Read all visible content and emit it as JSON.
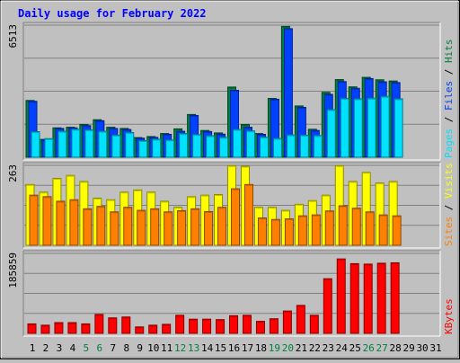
{
  "title": "Daily usage for February 2022",
  "colors": {
    "title": "#0000ff",
    "hits": "#008040",
    "files": "#0040ff",
    "pages": "#00e0ff",
    "visits": "#ffff00",
    "sites": "#ff8000",
    "kbytes": "#ff0000",
    "weekend": "#008040",
    "weekday": "#000000",
    "panel_bg": "#c0c0c0",
    "grid": "#808080"
  },
  "chart_data": [
    {
      "type": "bar",
      "x": [
        1,
        2,
        3,
        4,
        5,
        6,
        7,
        8,
        9,
        10,
        11,
        12,
        13,
        14,
        15,
        16,
        17,
        18,
        19,
        20,
        21,
        22,
        23,
        24,
        25,
        26,
        27,
        28,
        29,
        30,
        31
      ],
      "weekend_days": [
        5,
        6,
        12,
        13,
        19,
        20,
        26,
        27
      ],
      "ymax": 6513,
      "ymax_label": "6513",
      "legend": [
        {
          "text": "Pages",
          "color_key": "pages"
        },
        {
          "text": " / ",
          "color_key": "weekday"
        },
        {
          "text": "Files",
          "color_key": "files"
        },
        {
          "text": " / ",
          "color_key": "weekday"
        },
        {
          "text": "Hits",
          "color_key": "hits"
        }
      ],
      "series": [
        {
          "name": "Hits",
          "values": [
            2800,
            880,
            1450,
            1480,
            1620,
            1850,
            1480,
            1420,
            970,
            1020,
            1170,
            1400,
            2110,
            1320,
            1200,
            3460,
            1620,
            1170,
            2900,
            6450,
            2530,
            1380,
            3200,
            3830,
            3470,
            3940,
            3820,
            3760,
            0,
            0,
            0
          ]
        },
        {
          "name": "Files",
          "values": [
            2760,
            860,
            1420,
            1450,
            1560,
            1800,
            1420,
            1370,
            940,
            980,
            1130,
            1280,
            2060,
            1270,
            1140,
            3300,
            1480,
            1130,
            2860,
            6340,
            2460,
            1320,
            3100,
            3730,
            3400,
            3880,
            3720,
            3680,
            0,
            0,
            0
          ]
        },
        {
          "name": "Pages",
          "values": [
            1260,
            920,
            1280,
            1380,
            1350,
            1280,
            1090,
            1220,
            820,
            890,
            850,
            1170,
            1120,
            1060,
            980,
            1370,
            1300,
            990,
            930,
            1100,
            1090,
            1070,
            2350,
            2900,
            2880,
            2910,
            3000,
            2880,
            0,
            0,
            0
          ]
        }
      ]
    },
    {
      "type": "bar",
      "x": [
        1,
        2,
        3,
        4,
        5,
        6,
        7,
        8,
        9,
        10,
        11,
        12,
        13,
        14,
        15,
        16,
        17,
        18,
        19,
        20,
        21,
        22,
        23,
        24,
        25,
        26,
        27,
        28,
        29,
        30,
        31
      ],
      "ymax": 263,
      "ymax_label": "263",
      "legend": [
        {
          "text": "Sites",
          "color_key": "sites"
        },
        {
          "text": " / ",
          "color_key": "weekday"
        },
        {
          "text": "Visits",
          "color_key": "visits"
        }
      ],
      "series": [
        {
          "name": "Visits",
          "values": [
            200,
            175,
            220,
            230,
            210,
            155,
            150,
            175,
            182,
            175,
            145,
            125,
            160,
            165,
            167,
            262,
            260,
            125,
            125,
            115,
            135,
            147,
            165,
            262,
            210,
            240,
            205,
            210,
            0,
            0,
            0
          ]
        },
        {
          "name": "Sites",
          "values": [
            165,
            160,
            145,
            150,
            120,
            128,
            110,
            125,
            115,
            120,
            110,
            114,
            120,
            111,
            125,
            186,
            200,
            90,
            85,
            87,
            97,
            100,
            113,
            130,
            122,
            110,
            100,
            97,
            0,
            0,
            0
          ]
        }
      ]
    },
    {
      "type": "bar",
      "x": [
        1,
        2,
        3,
        4,
        5,
        6,
        7,
        8,
        9,
        10,
        11,
        12,
        13,
        14,
        15,
        16,
        17,
        18,
        19,
        20,
        21,
        22,
        23,
        24,
        25,
        26,
        27,
        28,
        29,
        30,
        31
      ],
      "ymax": 185859,
      "ymax_label": "185859",
      "legend": [
        {
          "text": "KBytes",
          "color_key": "kbytes"
        }
      ],
      "series": [
        {
          "name": "KBytes",
          "values": [
            22000,
            19000,
            25000,
            25000,
            22000,
            44000,
            36000,
            38000,
            15000,
            19000,
            21000,
            42000,
            33000,
            33000,
            32000,
            41000,
            42000,
            28000,
            34000,
            52000,
            65000,
            42000,
            127000,
            173000,
            162000,
            161000,
            163000,
            164000,
            0,
            0,
            0
          ]
        }
      ]
    }
  ]
}
